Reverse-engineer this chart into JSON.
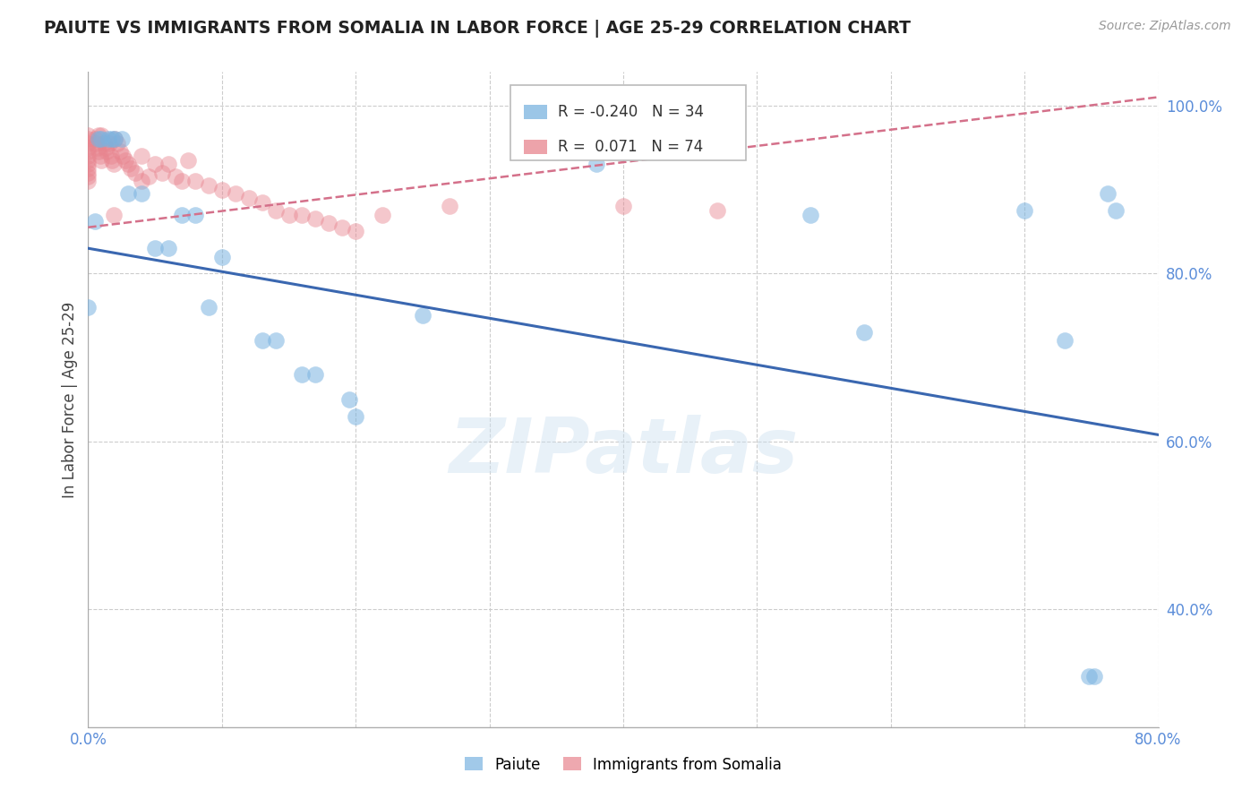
{
  "title": "PAIUTE VS IMMIGRANTS FROM SOMALIA IN LABOR FORCE | AGE 25-29 CORRELATION CHART",
  "source": "Source: ZipAtlas.com",
  "ylabel": "In Labor Force | Age 25-29",
  "watermark": "ZIPatlas",
  "blue_label": "Paiute",
  "pink_label": "Immigrants from Somalia",
  "blue_R": -0.24,
  "blue_N": 34,
  "pink_R": 0.071,
  "pink_N": 74,
  "xmin": 0.0,
  "xmax": 0.8,
  "ymin": 0.26,
  "ymax": 1.04,
  "ytick_vals": [
    0.4,
    0.6,
    0.8,
    1.0
  ],
  "ytick_labels": [
    "40.0%",
    "60.0%",
    "80.0%",
    "100.0%"
  ],
  "xtick_vals": [
    0.0,
    0.1,
    0.2,
    0.3,
    0.4,
    0.5,
    0.6,
    0.7,
    0.8
  ],
  "xtick_labels": [
    "0.0%",
    "",
    "",
    "",
    "",
    "",
    "",
    "",
    "80.0%"
  ],
  "grid_color": "#cccccc",
  "blue_color": "#7ab3e0",
  "pink_color": "#e8848e",
  "blue_line_color": "#3a67b0",
  "pink_line_color": "#d4708a",
  "background_color": "#ffffff",
  "title_color": "#222222",
  "axis_color": "#5b8dd9",
  "blue_line_x": [
    0.0,
    0.8
  ],
  "blue_line_y": [
    0.83,
    0.608
  ],
  "pink_line_x": [
    0.0,
    0.8
  ],
  "pink_line_y": [
    0.855,
    1.01
  ],
  "blue_scatter_x": [
    0.0,
    0.005,
    0.008,
    0.01,
    0.015,
    0.018,
    0.02,
    0.025,
    0.03,
    0.04,
    0.05,
    0.06,
    0.07,
    0.08,
    0.09,
    0.1,
    0.13,
    0.14,
    0.16,
    0.17,
    0.195,
    0.2,
    0.25,
    0.38,
    0.54,
    0.58,
    0.7,
    0.73,
    0.748,
    0.752,
    0.762,
    0.768
  ],
  "blue_scatter_y": [
    0.76,
    0.862,
    0.96,
    0.96,
    0.96,
    0.96,
    0.96,
    0.96,
    0.895,
    0.895,
    0.83,
    0.83,
    0.87,
    0.87,
    0.76,
    0.82,
    0.72,
    0.72,
    0.68,
    0.68,
    0.65,
    0.63,
    0.75,
    0.93,
    0.87,
    0.73,
    0.875,
    0.72,
    0.32,
    0.32,
    0.895,
    0.875
  ],
  "pink_scatter_x": [
    0.0,
    0.0,
    0.0,
    0.0,
    0.0,
    0.0,
    0.0,
    0.0,
    0.0,
    0.0,
    0.0,
    0.0,
    0.005,
    0.006,
    0.007,
    0.008,
    0.008,
    0.009,
    0.01,
    0.01,
    0.012,
    0.013,
    0.014,
    0.016,
    0.017,
    0.018,
    0.019,
    0.019,
    0.02,
    0.022,
    0.024,
    0.026,
    0.028,
    0.03,
    0.032,
    0.035,
    0.04,
    0.04,
    0.045,
    0.05,
    0.055,
    0.06,
    0.065,
    0.07,
    0.075,
    0.08,
    0.09,
    0.1,
    0.11,
    0.12,
    0.13,
    0.14,
    0.15,
    0.16,
    0.17,
    0.18,
    0.19,
    0.2,
    0.22,
    0.27,
    0.34,
    0.35,
    0.4,
    0.47
  ],
  "pink_scatter_y": [
    0.965,
    0.96,
    0.955,
    0.95,
    0.945,
    0.94,
    0.935,
    0.93,
    0.925,
    0.92,
    0.915,
    0.91,
    0.96,
    0.955,
    0.95,
    0.965,
    0.945,
    0.94,
    0.965,
    0.935,
    0.955,
    0.95,
    0.945,
    0.955,
    0.94,
    0.935,
    0.93,
    0.87,
    0.96,
    0.955,
    0.945,
    0.94,
    0.935,
    0.93,
    0.925,
    0.92,
    0.94,
    0.91,
    0.915,
    0.93,
    0.92,
    0.93,
    0.915,
    0.91,
    0.935,
    0.91,
    0.905,
    0.9,
    0.895,
    0.89,
    0.885,
    0.875,
    0.87,
    0.87,
    0.865,
    0.86,
    0.855,
    0.85,
    0.87,
    0.88,
    0.965,
    0.96,
    0.88,
    0.875
  ]
}
